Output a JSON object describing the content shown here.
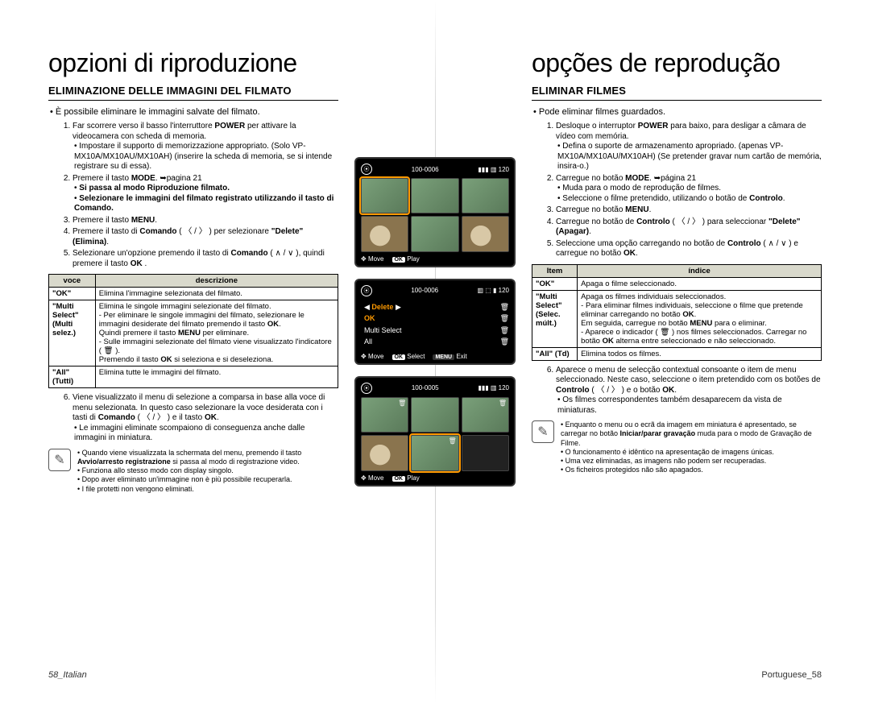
{
  "left": {
    "title": "opzioni di riproduzione",
    "subtitle": "ELIMINAZIONE DELLE IMMAGINI DEL FILMATO",
    "intro": "È possibile eliminare le immagini salvate del filmato.",
    "steps": [
      "Far scorrere verso il basso l'interruttore <b>POWER</b> per attivare la videocamera con scheda di memoria.<ul><li>Impostare il supporto di memorizzazione appropriato. (Solo VP-MX10A/MX10AU/MX10AH) (inserire la scheda di memoria, se si intende registrare su di essa).</li></ul>",
      "Premere il tasto <b>MODE</b>. ➥pagina 21<ul><li><b>Si passa al modo Riproduzione filmato.</b></li><li><b>Selezionare le immagini del filmato registrato utilizzando il tasto di Comando.</b></li></ul>",
      "Premere il tasto <b>MENU</b>.",
      "Premere il tasto di <b>Comando</b> ( 〈 / 〉 ) per selezionare <b>\"Delete\" (Elimina)</b>.",
      "Selezionare un'opzione premendo il tasto di <b>Comando</b> ( ∧ / ∨ ), quindi premere il tasto <b>OK</b> ."
    ],
    "table": {
      "headers": [
        "voce",
        "descrizione"
      ],
      "rows": [
        [
          "\"OK\"",
          "Elimina l'immagine selezionata del filmato."
        ],
        [
          "\"Multi Select\"\n(Multi selez.)",
          "Elimina le singole immagini selezionate del filmato.\n- Per eliminare le singole immagini del filmato, selezionare le immagini desiderate del filmato premendo il tasto <b>OK</b>.\nQuindi premere il tasto <b>MENU</b> per eliminare.\n- Sulle immagini selezionate del filmato viene visualizzato l'indicatore ( 🗑 ).\nPremendo il tasto <b>OK</b> si seleziona e si deseleziona."
        ],
        [
          "\"All\" (Tutti)",
          "Elimina tutte le immagini del filmato."
        ]
      ]
    },
    "step6": "Viene visualizzato il menu di selezione a comparsa in base alla voce di menu selezionata. In questo caso selezionare la voce desiderata con i tasti di <b>Comando</b> ( 〈 / 〉 ) e il tasto <b>OK</b>.<ul><li>Le immagini eliminate scompaiono di conseguenza anche dalle immagini in miniatura.</li></ul>",
    "notes": [
      "Quando viene visualizzata la schermata del menu, premendo il tasto <b>Avvio/arresto registrazione</b> si passa al modo di registrazione video.",
      "Funziona allo stesso modo con display singolo.",
      "Dopo aver eliminato un'immagine non è più possibile recuperarla.",
      "I file protetti non vengono eliminati."
    ],
    "footer": "58_Italian"
  },
  "right": {
    "title": "opções de reprodução",
    "subtitle": "ELIMINAR FILMES",
    "intro": "Pode eliminar filmes guardados.",
    "steps": [
      "Desloque o interruptor <b>POWER</b> para baixo, para desligar a câmara de vídeo com memória.<ul><li>Defina o suporte de armazenamento apropriado. (apenas VP-MX10A/MX10AU/MX10AH) (Se pretender gravar num cartão de memória, insira-o.)</li></ul>",
      "Carregue no botão <b>MODE</b>. ➥página 21<ul><li>Muda para o modo de reprodução de filmes.</li><li>Seleccione o filme pretendido, utilizando o botão de <b>Controlo</b>.</li></ul>",
      "Carregue no botão <b>MENU</b>.",
      "Carregue no botão de <b>Controlo</b> ( 〈 / 〉 ) para seleccionar <b>\"Delete\" (Apagar)</b>.",
      "Seleccione uma opção carregando no botão de <b>Controlo</b> ( ∧ / ∨ ) e carregue no botão <b>OK</b>."
    ],
    "table": {
      "headers": [
        "Item",
        "índice"
      ],
      "rows": [
        [
          "\"OK\"",
          "Apaga o filme seleccionado."
        ],
        [
          "\"Multi Select\"\n(Selec. múlt.)",
          "Apaga os filmes individuais seleccionados.\n- Para eliminar filmes individuais, seleccione o filme que pretende eliminar carregando no botão <b>OK</b>.\nEm seguida, carregue no botão <b>MENU</b> para o eliminar.\n- Aparece o indicador ( 🗑 ) nos filmes seleccionados. Carregar no botão <b>OK</b> alterna entre seleccionado e não seleccionado."
        ],
        [
          "\"All\" (Td)",
          "Elimina todos os filmes."
        ]
      ]
    },
    "step6": "Aparece o menu de selecção contextual consoante o item de menu seleccionado. Neste caso, seleccione o item pretendido com os botões de <b>Controlo</b> ( 〈 / 〉 ) e o botão <b>OK</b>.<ul><li>Os filmes correspondentes também desaparecem da vista de miniaturas.</li></ul>",
    "notes": [
      "Enquanto o menu ou o ecrã da imagem em miniatura é apresentado, se carregar no botão <b>Iniciar/parar gravação</b> muda para o modo de Gravação de Filme.",
      "O funcionamento é idêntico na apresentação de imagens únicas.",
      "Uma vez eliminadas, as imagens não podem ser recuperadas.",
      "Os ficheiros protegidos não são apagados."
    ],
    "footer": "Portuguese_58"
  },
  "screens": {
    "s1": {
      "counter": "100-0006",
      "bot_left": "Move",
      "bot_right": "Play",
      "time": "120"
    },
    "s2": {
      "counter": "100-0006",
      "menu": [
        "Delete",
        "OK",
        "Multi Select",
        "All"
      ],
      "bot_left": "Move",
      "bot_mid": "Select",
      "bot_right": "Exit"
    },
    "s3": {
      "counter": "100-0005",
      "bot_left": "Move",
      "bot_right": "Play"
    }
  },
  "colors": {
    "table_header": "#d9d9cc",
    "highlight": "#ff9a00"
  }
}
